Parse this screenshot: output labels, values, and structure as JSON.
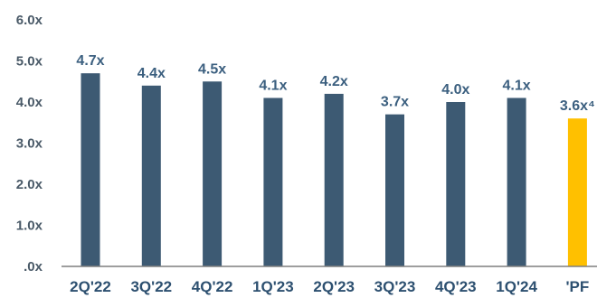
{
  "chart_data": {
    "type": "bar",
    "categories": [
      "2Q'22",
      "3Q'22",
      "4Q'22",
      "1Q'23",
      "2Q'23",
      "3Q'23",
      "4Q'23",
      "1Q'24",
      "'PF"
    ],
    "values": [
      4.7,
      4.4,
      4.5,
      4.1,
      4.2,
      3.7,
      4.0,
      4.1,
      3.6
    ],
    "data_labels": [
      "4.7x",
      "4.4x",
      "4.5x",
      "4.1x",
      "4.2x",
      "3.7x",
      "4.0x",
      "4.1x",
      "3.6x⁴"
    ],
    "y_ticks": [
      0,
      1,
      2,
      3,
      4,
      5,
      6
    ],
    "y_tick_labels": [
      ".0x",
      "1.0x",
      "2.0x",
      "3.0x",
      "4.0x",
      "5.0x",
      "6.0x"
    ],
    "ylim": [
      0,
      6
    ],
    "grid": false,
    "colors": {
      "bar": "#3d5a73",
      "highlight_bar": "#ffc000",
      "axis": "#7f7f7f"
    },
    "highlight_index": 8
  }
}
